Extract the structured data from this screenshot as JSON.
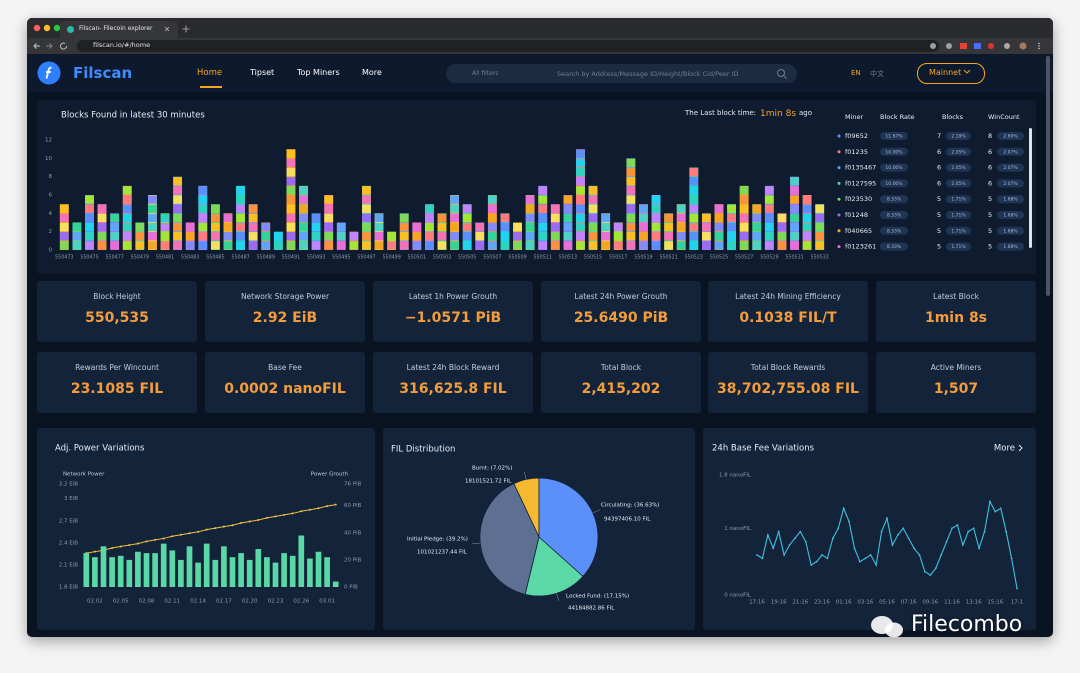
{
  "browser": {
    "tab_title": "Filscan- Filecoin explorer",
    "url": "filscan.io/#/home"
  },
  "nav": {
    "brand": "Filscan",
    "links": [
      "Home",
      "Tipset",
      "Top Miners",
      "More"
    ],
    "filter": "All filters",
    "search_placeholder": "Search by Address/Message ID/Height/Block Cid/Peer ID",
    "languages": [
      "EN",
      "中文"
    ],
    "network": "Mainnet"
  },
  "blocks_panel": {
    "last_block_label": "The Last block time:",
    "last_block_value": "1min 8s",
    "last_block_suffix": "ago",
    "table": {
      "columns": [
        "Miner",
        "Block Rate",
        "Blocks",
        "WinCount"
      ],
      "row_colors": [
        "#5b8ff9",
        "#ff7c7c",
        "#60a5fa",
        "#4fd1c5",
        "#7ed957",
        "#9b6cf2",
        "#f5a623",
        "#e86fd4"
      ],
      "rows": [
        [
          "f09652",
          "11.67%",
          "7",
          "2.18%",
          "8",
          "2.69%"
        ],
        [
          "f01235",
          "10.00%",
          "6",
          "2.05%",
          "6",
          "2.07%"
        ],
        [
          "f0135467",
          "10.00%",
          "6",
          "2.05%",
          "6",
          "2.07%"
        ],
        [
          "f0127595",
          "10.00%",
          "6",
          "2.05%",
          "6",
          "2.07%"
        ],
        [
          "f023530",
          "8.33%",
          "5",
          "1.71%",
          "5",
          "1.68%"
        ],
        [
          "f01248",
          "8.33%",
          "5",
          "1.71%",
          "5",
          "1.68%"
        ],
        [
          "f040665",
          "8.33%",
          "5",
          "1.71%",
          "5",
          "1.68%"
        ],
        [
          "f0123261",
          "8.33%",
          "5",
          "1.71%",
          "5",
          "1.68%"
        ]
      ]
    }
  },
  "stats": [
    {
      "label": "Block Height",
      "value": "550,535"
    },
    {
      "label": "Network Storage Power",
      "value": "2.92 EiB"
    },
    {
      "label": "Latest 1h Power Grouth",
      "value": "−1.0571 PiB"
    },
    {
      "label": "Latest 24h Power Grouth",
      "value": "25.6490 PiB"
    },
    {
      "label": "Latest 24h Mining Efficiency",
      "value": "0.1038 FIL/T"
    },
    {
      "label": "Latest Block",
      "value": "1min 8s"
    },
    {
      "label": "Rewards Per Wincount",
      "value": "23.1085 FIL"
    },
    {
      "label": "Base Fee",
      "value": "0.0002 nanoFIL"
    },
    {
      "label": "Latest 24h Block Reward",
      "value": "316,625.8 FIL"
    },
    {
      "label": "Total Block",
      "value": "2,415,202"
    },
    {
      "label": "Total Block Rewards",
      "value": "38,702,755.08 FIL"
    },
    {
      "label": "Active Miners",
      "value": "1,507"
    }
  ],
  "chart_data": [
    {
      "type": "stacked-block-bar",
      "title": "Blocks Found in latest 30 minutes",
      "categories": [
        "550473",
        null,
        "550475",
        null,
        "550477",
        null,
        "550479",
        null,
        "550481",
        null,
        "550483",
        null,
        "550485",
        null,
        "550487",
        null,
        "550489",
        null,
        "550491",
        null,
        "550493",
        null,
        "550495",
        null,
        "550497",
        null,
        "550499",
        null,
        "550501",
        null,
        "550503",
        null,
        "550505",
        null,
        "550507",
        null,
        "550509",
        null,
        "550511",
        null,
        "550513",
        null,
        "550515",
        null,
        "550517",
        null,
        "550519",
        null,
        "550521",
        null,
        "550523",
        null,
        "550525",
        null,
        "550527",
        null,
        "550529",
        null,
        "550531",
        null,
        "550533"
      ],
      "values": [
        5,
        3,
        6,
        5,
        4,
        7,
        3,
        6,
        4,
        8,
        3,
        7,
        5,
        4,
        7,
        5,
        3,
        2,
        11,
        7,
        4,
        6,
        3,
        2,
        7,
        4,
        2,
        4,
        3,
        5,
        4,
        6,
        5,
        3,
        6,
        4,
        3,
        6,
        7,
        5,
        6,
        11,
        7,
        4,
        3,
        10,
        5,
        6,
        4,
        5,
        9,
        4,
        5,
        5,
        7,
        5,
        7,
        4,
        8,
        6,
        5
      ],
      "ylim": [
        0,
        12
      ],
      "yticks": [
        0,
        2,
        4,
        6,
        8,
        10,
        12
      ],
      "colors": [
        "#f5a623",
        "#7ed957",
        "#5b8ff9",
        "#e86fd4",
        "#9b6cf2",
        "#ff7c7c",
        "#4fd1c5",
        "#f6e05e",
        "#a3e635",
        "#60a5fa",
        "#f472b6",
        "#c084fc",
        "#34d399",
        "#fbbf24",
        "#2dd4bf",
        "#818cf8",
        "#fb923c",
        "#22d3ee"
      ]
    },
    {
      "type": "bar-line",
      "title": "Adj. Power Variations",
      "categories": [
        null,
        "02.02",
        null,
        null,
        "02.05",
        null,
        null,
        "02.08",
        null,
        null,
        "02.11",
        null,
        null,
        "02.14",
        null,
        null,
        "02.17",
        null,
        null,
        "02.20",
        null,
        null,
        "02.23",
        null,
        null,
        "02.26",
        null,
        null,
        "03.01",
        null
      ],
      "ylim": [
        1.8,
        3.2
      ],
      "yticks": [
        {
          "value": 1.8,
          "label": "1.8 EiB"
        },
        {
          "value": 2.1,
          "label": "2.1 EiB"
        },
        {
          "value": 2.4,
          "label": "2.4 EiB"
        },
        {
          "value": 2.7,
          "label": "2.7 EiB"
        },
        {
          "value": 3,
          "label": "3 EiB"
        },
        {
          "value": 3.2,
          "label": "3.2 EiB"
        }
      ],
      "y2lim": [
        0,
        76
      ],
      "y2ticks": [
        {
          "value": 0,
          "label": "0 PiB"
        },
        {
          "value": 20,
          "label": "20 PiB"
        },
        {
          "value": 40,
          "label": "40 PiB"
        },
        {
          "value": 60,
          "label": "60 PiB"
        },
        {
          "value": 76,
          "label": "76 PiB"
        }
      ],
      "series": [
        {
          "name": "Network Power",
          "type": "line",
          "color": "#f5c242",
          "values": [
            2.26,
            2.28,
            2.3,
            2.33,
            2.35,
            2.37,
            2.39,
            2.42,
            2.44,
            2.46,
            2.49,
            2.51,
            2.53,
            2.55,
            2.58,
            2.6,
            2.62,
            2.64,
            2.67,
            2.69,
            2.71,
            2.74,
            2.76,
            2.78,
            2.8,
            2.83,
            2.85,
            2.87,
            2.9,
            2.92
          ]
        },
        {
          "name": "Power Grouth",
          "type": "bar",
          "axis": "y2",
          "color": "#5ad8a6",
          "values": [
            25,
            22,
            30,
            22,
            23,
            20,
            26,
            25,
            25,
            32,
            27,
            20,
            30,
            18,
            32,
            20,
            30,
            22,
            25,
            20,
            28,
            22,
            18,
            25,
            23,
            38,
            21,
            26,
            22,
            4
          ]
        }
      ]
    },
    {
      "type": "pie",
      "title": "FIL Distribution",
      "values": [
        7.02,
        36.63,
        17.15,
        39.2
      ],
      "value_labels": [
        "Burnt: (7.02%)",
        "Circulating: (36.63%)",
        "Locked Fund: (17.15%)",
        "Initial Pledge: (39.2%)"
      ],
      "amounts": [
        "18101521.72 FIL",
        "94397406.10 FIL",
        "44184882.86 FIL",
        "101021237.44 FIL"
      ],
      "colors": [
        "#f5b82e",
        "#5b8ff9",
        "#5ad8a6",
        "#5d7092"
      ]
    },
    {
      "type": "line",
      "title": "24h Base Fee Variations",
      "link": "More",
      "color": "#3fc1e0",
      "categories": [
        "17:16",
        null,
        null,
        null,
        "19:16",
        null,
        null,
        null,
        "21:16",
        null,
        null,
        null,
        "23:16",
        null,
        null,
        null,
        "01:16",
        null,
        null,
        null,
        "03:16",
        null,
        null,
        null,
        "05:16",
        null,
        null,
        null,
        "07:16",
        null,
        null,
        null,
        "09:16",
        null,
        null,
        null,
        "11:16",
        null,
        null,
        null,
        "13:16",
        null,
        null,
        null,
        "15:16",
        null,
        null,
        null,
        "17:1"
      ],
      "values": [
        0.6,
        0.55,
        0.9,
        0.7,
        0.95,
        0.6,
        0.75,
        0.85,
        0.95,
        0.8,
        0.45,
        0.5,
        0.6,
        0.55,
        0.85,
        1.0,
        1.3,
        1.1,
        0.7,
        0.5,
        0.55,
        0.6,
        0.45,
        0.95,
        1.15,
        0.75,
        0.9,
        1.0,
        0.85,
        0.7,
        0.6,
        0.35,
        0.3,
        0.4,
        0.6,
        0.8,
        1.0,
        1.05,
        0.75,
        0.95,
        1.0,
        0.7,
        0.95,
        1.4,
        1.25,
        1.3,
        0.95,
        0.55,
        0.1
      ],
      "ylim": [
        0,
        1.8
      ],
      "yticks": [
        {
          "value": 0,
          "label": "0 nanoFIL"
        },
        {
          "value": 1,
          "label": "1 nanoFIL"
        },
        {
          "value": 1.8,
          "label": "1.8 nanoFIL"
        }
      ]
    }
  ],
  "watermark": "Filecombo"
}
